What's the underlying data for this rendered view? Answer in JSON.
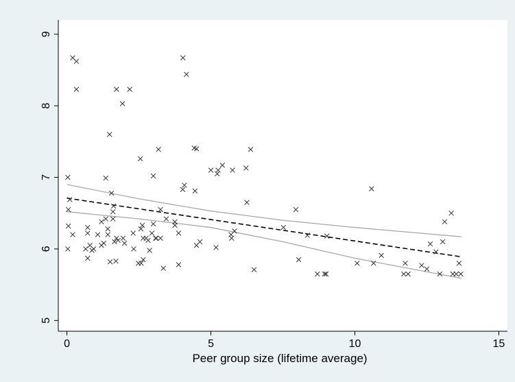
{
  "chart_data": {
    "type": "scatter",
    "title": "",
    "xlabel": "Peer group size (lifetime average)",
    "ylabel": "",
    "xlim": [
      -0.3,
      15.3
    ],
    "ylim": [
      4.85,
      9.2
    ],
    "x_ticks": [
      0,
      5,
      10,
      15
    ],
    "y_ticks": [
      5,
      6,
      7,
      8,
      9
    ],
    "x_tick_labels": [
      "0",
      "5",
      "10",
      "15"
    ],
    "y_tick_labels": [
      "5",
      "6",
      "7",
      "8",
      "9"
    ],
    "grid": false,
    "legend": "none",
    "colors": {
      "background": "#eaf2f3",
      "plot_area": "#ffffff",
      "markers": "#333333",
      "fit_line": "#000000",
      "ci_lines": "#a8a8a8"
    },
    "series": [
      {
        "type": "scatter",
        "marker": "x",
        "points": [
          [
            0.2,
            8.67
          ],
          [
            0.33,
            8.62
          ],
          [
            0.33,
            8.23
          ],
          [
            0.03,
            7.0
          ],
          [
            0.1,
            6.69
          ],
          [
            0.05,
            6.55
          ],
          [
            0.05,
            6.32
          ],
          [
            0.2,
            6.2
          ],
          [
            0.03,
            6.0
          ],
          [
            0.65,
            6.0
          ],
          [
            0.72,
            5.87
          ],
          [
            0.72,
            6.3
          ],
          [
            0.72,
            6.22
          ],
          [
            0.8,
            6.05
          ],
          [
            0.87,
            5.98
          ],
          [
            0.93,
            6.0
          ],
          [
            1.07,
            6.2
          ],
          [
            1.2,
            6.38
          ],
          [
            1.2,
            6.05
          ],
          [
            1.28,
            6.08
          ],
          [
            1.35,
            6.99
          ],
          [
            1.35,
            6.42
          ],
          [
            1.42,
            6.28
          ],
          [
            1.42,
            6.2
          ],
          [
            1.48,
            7.6
          ],
          [
            1.55,
            6.78
          ],
          [
            1.5,
            5.82
          ],
          [
            1.6,
            6.52
          ],
          [
            1.6,
            6.42
          ],
          [
            1.62,
            6.6
          ],
          [
            1.65,
            6.1
          ],
          [
            1.72,
            8.23
          ],
          [
            1.72,
            6.15
          ],
          [
            1.78,
            6.12
          ],
          [
            1.7,
            5.83
          ],
          [
            1.93,
            8.03
          ],
          [
            1.95,
            6.15
          ],
          [
            2.0,
            6.08
          ],
          [
            2.18,
            8.23
          ],
          [
            2.3,
            6.22
          ],
          [
            2.32,
            6.0
          ],
          [
            2.48,
            5.8
          ],
          [
            2.55,
            7.26
          ],
          [
            2.57,
            6.28
          ],
          [
            2.58,
            5.8
          ],
          [
            2.62,
            6.33
          ],
          [
            2.65,
            5.85
          ],
          [
            2.65,
            6.15
          ],
          [
            2.75,
            6.15
          ],
          [
            2.82,
            6.12
          ],
          [
            2.87,
            5.98
          ],
          [
            2.95,
            6.22
          ],
          [
            3.0,
            7.02
          ],
          [
            3.0,
            6.35
          ],
          [
            3.08,
            6.15
          ],
          [
            3.1,
            6.15
          ],
          [
            3.18,
            7.39
          ],
          [
            3.25,
            6.55
          ],
          [
            3.25,
            6.15
          ],
          [
            3.35,
            5.73
          ],
          [
            3.45,
            6.42
          ],
          [
            3.75,
            6.38
          ],
          [
            3.75,
            6.33
          ],
          [
            3.88,
            6.22
          ],
          [
            3.88,
            5.78
          ],
          [
            4.03,
            8.67
          ],
          [
            4.02,
            6.83
          ],
          [
            4.08,
            6.89
          ],
          [
            4.15,
            8.44
          ],
          [
            4.42,
            7.41
          ],
          [
            4.45,
            6.81
          ],
          [
            4.5,
            7.4
          ],
          [
            4.5,
            6.05
          ],
          [
            4.62,
            6.1
          ],
          [
            5.0,
            7.1
          ],
          [
            5.18,
            6.02
          ],
          [
            5.22,
            7.05
          ],
          [
            5.25,
            7.1
          ],
          [
            5.4,
            7.17
          ],
          [
            5.7,
            6.2
          ],
          [
            5.72,
            6.15
          ],
          [
            5.75,
            7.1
          ],
          [
            5.82,
            6.25
          ],
          [
            6.22,
            7.13
          ],
          [
            6.25,
            6.65
          ],
          [
            6.38,
            7.39
          ],
          [
            6.5,
            5.71
          ],
          [
            7.52,
            6.3
          ],
          [
            7.95,
            6.55
          ],
          [
            8.05,
            5.85
          ],
          [
            8.35,
            6.19
          ],
          [
            8.7,
            5.65
          ],
          [
            8.95,
            5.65
          ],
          [
            9.0,
            5.65
          ],
          [
            9.03,
            6.18
          ],
          [
            10.08,
            5.8
          ],
          [
            10.58,
            6.84
          ],
          [
            10.65,
            5.8
          ],
          [
            10.92,
            5.91
          ],
          [
            11.7,
            5.65
          ],
          [
            11.75,
            5.8
          ],
          [
            11.85,
            5.65
          ],
          [
            12.32,
            5.77
          ],
          [
            12.5,
            5.72
          ],
          [
            12.62,
            6.07
          ],
          [
            12.82,
            5.96
          ],
          [
            12.95,
            5.65
          ],
          [
            13.05,
            6.1
          ],
          [
            13.12,
            6.38
          ],
          [
            13.35,
            6.5
          ],
          [
            13.4,
            5.65
          ],
          [
            13.52,
            5.65
          ],
          [
            13.62,
            5.8
          ],
          [
            13.68,
            5.65
          ]
        ]
      },
      {
        "type": "line",
        "role": "fitted-values",
        "style": "dashed",
        "points": [
          [
            0.0,
            6.71
          ],
          [
            13.7,
            5.89
          ]
        ]
      },
      {
        "type": "line",
        "role": "ci-upper",
        "style": "solid",
        "points": [
          [
            0.0,
            6.9
          ],
          [
            2.5,
            6.7
          ],
          [
            5.0,
            6.53
          ],
          [
            7.5,
            6.4
          ],
          [
            10.0,
            6.3
          ],
          [
            13.7,
            6.17
          ]
        ]
      },
      {
        "type": "line",
        "role": "ci-lower",
        "style": "solid",
        "points": [
          [
            0.0,
            6.52
          ],
          [
            2.5,
            6.42
          ],
          [
            5.0,
            6.3
          ],
          [
            7.5,
            6.1
          ],
          [
            10.0,
            5.87
          ],
          [
            13.7,
            5.59
          ]
        ]
      }
    ]
  }
}
